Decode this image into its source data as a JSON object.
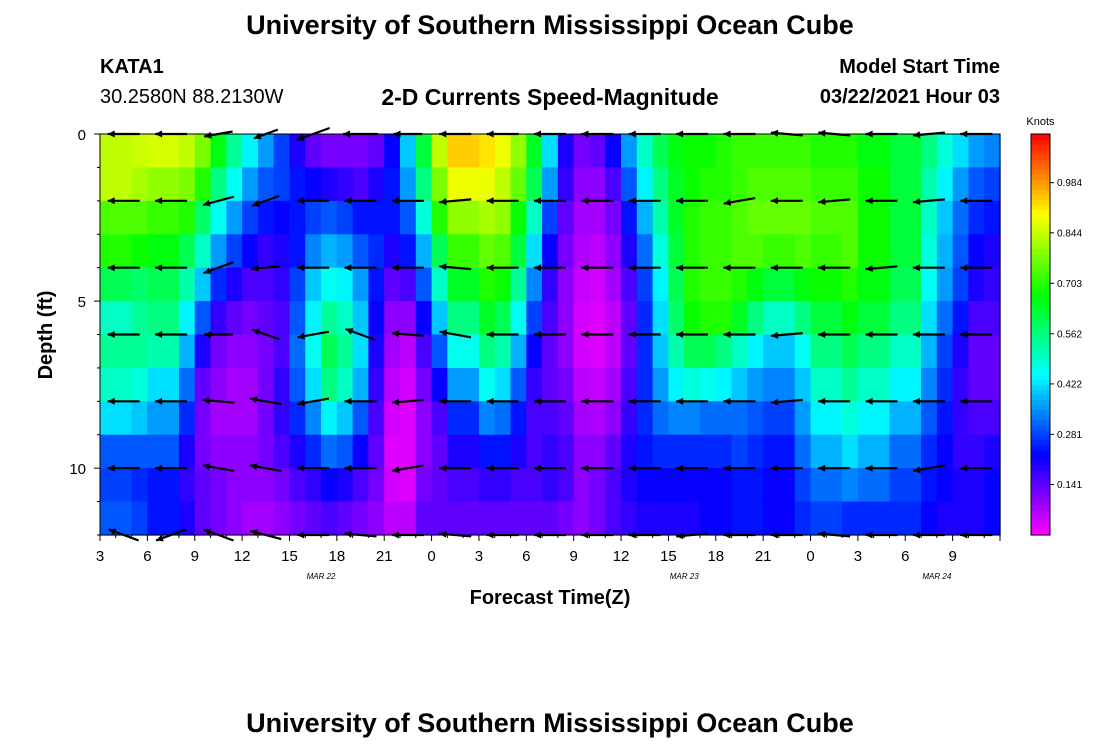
{
  "header": {
    "title": "University of Southern Mississippi Ocean Cube",
    "footer_title": "University of Southern Mississippi Ocean Cube",
    "station": "KATA1",
    "coords": "30.2580N 88.2130W",
    "subtitle": "2-D Currents Speed-Magnitude",
    "model_start_label": "Model Start Time",
    "model_start_value": "03/22/2021 Hour 03"
  },
  "colors": {
    "arrow": "#000000"
  },
  "chart_data": {
    "type": "heatmap",
    "title": "2-D Currents Speed-Magnitude",
    "xlabel": "Forecast Time(Z)",
    "ylabel": "Depth (ft)",
    "x_hours_from_start": [
      0,
      57
    ],
    "y_depth_ft": [
      0,
      12
    ],
    "x_tick_labels": [
      "3",
      "6",
      "9",
      "12",
      "15",
      "18",
      "21",
      "0",
      "3",
      "6",
      "9",
      "12",
      "15",
      "18",
      "21",
      "0",
      "3",
      "6",
      "9"
    ],
    "date_labels": [
      {
        "hour": 14,
        "text": "MAR 22"
      },
      {
        "hour": 37,
        "text": "MAR 23"
      },
      {
        "hour": 53,
        "text": "MAR 24"
      }
    ],
    "y_tick_labels": [
      "0",
      "5",
      "10"
    ],
    "y_tick_values": [
      0,
      5,
      10
    ],
    "colorbar": {
      "label": "Knots",
      "range": [
        0.0,
        1.12
      ],
      "tick_values": [
        0.141,
        0.281,
        0.422,
        0.562,
        0.703,
        0.844,
        0.984
      ],
      "tick_labels": [
        "0.141",
        "0.281",
        "0.422",
        "0.562",
        "0.703",
        "0.844",
        "0.984"
      ]
    },
    "speed_profiles": [
      {
        "hour": 0,
        "knots": [
          0.84,
          0.84,
          0.74,
          0.7,
          0.6,
          0.5,
          0.54,
          0.5,
          0.42,
          0.3,
          0.28,
          0.3
        ]
      },
      {
        "hour": 2,
        "knots": [
          0.85,
          0.82,
          0.74,
          0.68,
          0.58,
          0.54,
          0.54,
          0.48,
          0.4,
          0.3,
          0.26,
          0.28
        ]
      },
      {
        "hour": 3,
        "knots": [
          0.86,
          0.8,
          0.72,
          0.66,
          0.6,
          0.56,
          0.52,
          0.42,
          0.36,
          0.3,
          0.24,
          0.24
        ]
      },
      {
        "hour": 5,
        "knots": [
          0.84,
          0.78,
          0.7,
          0.6,
          0.52,
          0.44,
          0.38,
          0.32,
          0.26,
          0.2,
          0.18,
          0.2
        ]
      },
      {
        "hour": 6,
        "knots": [
          0.78,
          0.7,
          0.58,
          0.5,
          0.4,
          0.3,
          0.2,
          0.14,
          0.12,
          0.12,
          0.14,
          0.14
        ]
      },
      {
        "hour": 7,
        "knots": [
          0.66,
          0.56,
          0.46,
          0.36,
          0.26,
          0.18,
          0.12,
          0.1,
          0.08,
          0.1,
          0.12,
          0.12
        ]
      },
      {
        "hour": 8,
        "knots": [
          0.54,
          0.46,
          0.36,
          0.28,
          0.2,
          0.14,
          0.1,
          0.08,
          0.08,
          0.1,
          0.1,
          0.1
        ]
      },
      {
        "hour": 9,
        "knots": [
          0.44,
          0.36,
          0.28,
          0.22,
          0.16,
          0.12,
          0.1,
          0.08,
          0.08,
          0.1,
          0.1,
          0.08
        ]
      },
      {
        "hour": 10,
        "knots": [
          0.36,
          0.3,
          0.24,
          0.18,
          0.16,
          0.14,
          0.12,
          0.12,
          0.12,
          0.12,
          0.1,
          0.08
        ]
      },
      {
        "hour": 11,
        "knots": [
          0.28,
          0.28,
          0.22,
          0.2,
          0.18,
          0.16,
          0.16,
          0.18,
          0.18,
          0.16,
          0.12,
          0.1
        ]
      },
      {
        "hour": 12,
        "knots": [
          0.2,
          0.24,
          0.24,
          0.24,
          0.28,
          0.3,
          0.32,
          0.3,
          0.26,
          0.2,
          0.16,
          0.12
        ]
      },
      {
        "hour": 13,
        "knots": [
          0.14,
          0.22,
          0.28,
          0.34,
          0.4,
          0.44,
          0.46,
          0.42,
          0.34,
          0.26,
          0.18,
          0.14
        ]
      },
      {
        "hour": 14,
        "knots": [
          0.12,
          0.2,
          0.3,
          0.38,
          0.46,
          0.54,
          0.6,
          0.56,
          0.44,
          0.32,
          0.22,
          0.16
        ]
      },
      {
        "hour": 15,
        "knots": [
          0.12,
          0.18,
          0.28,
          0.36,
          0.44,
          0.5,
          0.54,
          0.5,
          0.4,
          0.3,
          0.2,
          0.14
        ]
      },
      {
        "hour": 16,
        "knots": [
          0.12,
          0.16,
          0.24,
          0.3,
          0.36,
          0.4,
          0.42,
          0.38,
          0.3,
          0.22,
          0.16,
          0.12
        ]
      },
      {
        "hour": 17,
        "knots": [
          0.14,
          0.2,
          0.24,
          0.26,
          0.24,
          0.22,
          0.2,
          0.18,
          0.16,
          0.14,
          0.12,
          0.1
        ]
      },
      {
        "hour": 18,
        "knots": [
          0.22,
          0.24,
          0.24,
          0.2,
          0.14,
          0.1,
          0.08,
          0.06,
          0.04,
          0.03,
          0.04,
          0.06
        ]
      },
      {
        "hour": 19,
        "knots": [
          0.4,
          0.36,
          0.3,
          0.24,
          0.16,
          0.1,
          0.06,
          0.04,
          0.03,
          0.03,
          0.03,
          0.06
        ]
      },
      {
        "hour": 20,
        "knots": [
          0.62,
          0.56,
          0.48,
          0.38,
          0.3,
          0.22,
          0.16,
          0.12,
          0.1,
          0.1,
          0.12,
          0.14
        ]
      },
      {
        "hour": 21,
        "knots": [
          0.84,
          0.78,
          0.7,
          0.6,
          0.5,
          0.4,
          0.3,
          0.22,
          0.16,
          0.14,
          0.14,
          0.14
        ]
      },
      {
        "hour": 22,
        "knots": [
          0.94,
          0.88,
          0.8,
          0.72,
          0.64,
          0.56,
          0.46,
          0.36,
          0.26,
          0.2,
          0.16,
          0.14
        ]
      },
      {
        "hour": 24,
        "knots": [
          0.92,
          0.88,
          0.82,
          0.76,
          0.7,
          0.64,
          0.56,
          0.46,
          0.34,
          0.24,
          0.18,
          0.14
        ]
      },
      {
        "hour": 25,
        "knots": [
          0.88,
          0.84,
          0.8,
          0.74,
          0.68,
          0.6,
          0.52,
          0.42,
          0.32,
          0.24,
          0.18,
          0.14
        ]
      },
      {
        "hour": 26,
        "knots": [
          0.8,
          0.76,
          0.68,
          0.62,
          0.54,
          0.46,
          0.38,
          0.3,
          0.24,
          0.2,
          0.16,
          0.14
        ]
      },
      {
        "hour": 27,
        "knots": [
          0.64,
          0.6,
          0.5,
          0.42,
          0.34,
          0.28,
          0.22,
          0.18,
          0.16,
          0.16,
          0.16,
          0.14
        ]
      },
      {
        "hour": 28,
        "knots": [
          0.42,
          0.36,
          0.28,
          0.22,
          0.18,
          0.16,
          0.14,
          0.14,
          0.16,
          0.18,
          0.18,
          0.14
        ]
      },
      {
        "hour": 29,
        "knots": [
          0.2,
          0.18,
          0.14,
          0.12,
          0.1,
          0.1,
          0.1,
          0.12,
          0.14,
          0.16,
          0.16,
          0.12
        ]
      },
      {
        "hour": 30,
        "knots": [
          0.12,
          0.1,
          0.08,
          0.07,
          0.05,
          0.04,
          0.04,
          0.06,
          0.08,
          0.1,
          0.1,
          0.1
        ]
      },
      {
        "hour": 31,
        "knots": [
          0.14,
          0.1,
          0.08,
          0.06,
          0.04,
          0.03,
          0.03,
          0.05,
          0.07,
          0.1,
          0.12,
          0.12
        ]
      },
      {
        "hour": 32,
        "knots": [
          0.22,
          0.16,
          0.12,
          0.1,
          0.08,
          0.06,
          0.06,
          0.08,
          0.1,
          0.14,
          0.16,
          0.16
        ]
      },
      {
        "hour": 33,
        "knots": [
          0.36,
          0.3,
          0.24,
          0.2,
          0.16,
          0.14,
          0.14,
          0.16,
          0.18,
          0.2,
          0.2,
          0.18
        ]
      },
      {
        "hour": 34,
        "knots": [
          0.5,
          0.44,
          0.38,
          0.32,
          0.28,
          0.26,
          0.26,
          0.26,
          0.26,
          0.24,
          0.22,
          0.2
        ]
      },
      {
        "hour": 35,
        "knots": [
          0.6,
          0.56,
          0.52,
          0.48,
          0.44,
          0.42,
          0.4,
          0.36,
          0.32,
          0.26,
          0.22,
          0.2
        ]
      },
      {
        "hour": 36,
        "knots": [
          0.66,
          0.64,
          0.64,
          0.62,
          0.6,
          0.58,
          0.52,
          0.44,
          0.34,
          0.26,
          0.22,
          0.2
        ]
      },
      {
        "hour": 37,
        "knots": [
          0.68,
          0.68,
          0.7,
          0.7,
          0.7,
          0.68,
          0.6,
          0.48,
          0.34,
          0.26,
          0.22,
          0.2
        ]
      },
      {
        "hour": 38,
        "knots": [
          0.68,
          0.7,
          0.72,
          0.72,
          0.72,
          0.7,
          0.6,
          0.46,
          0.32,
          0.26,
          0.22,
          0.22
        ]
      },
      {
        "hour": 39,
        "knots": [
          0.7,
          0.7,
          0.72,
          0.72,
          0.72,
          0.7,
          0.56,
          0.44,
          0.32,
          0.26,
          0.22,
          0.22
        ]
      },
      {
        "hour": 40,
        "knots": [
          0.72,
          0.72,
          0.74,
          0.74,
          0.7,
          0.64,
          0.5,
          0.4,
          0.32,
          0.28,
          0.24,
          0.24
        ]
      },
      {
        "hour": 41,
        "knots": [
          0.72,
          0.74,
          0.76,
          0.74,
          0.66,
          0.56,
          0.44,
          0.36,
          0.3,
          0.26,
          0.24,
          0.24
        ]
      },
      {
        "hour": 42,
        "knots": [
          0.72,
          0.74,
          0.76,
          0.72,
          0.62,
          0.5,
          0.4,
          0.34,
          0.28,
          0.24,
          0.22,
          0.22
        ]
      },
      {
        "hour": 44,
        "knots": [
          0.72,
          0.74,
          0.76,
          0.74,
          0.66,
          0.56,
          0.46,
          0.4,
          0.36,
          0.32,
          0.28,
          0.26
        ]
      },
      {
        "hour": 45,
        "knots": [
          0.7,
          0.72,
          0.74,
          0.72,
          0.68,
          0.62,
          0.56,
          0.5,
          0.44,
          0.38,
          0.32,
          0.28
        ]
      },
      {
        "hour": 47,
        "knots": [
          0.7,
          0.72,
          0.74,
          0.74,
          0.7,
          0.66,
          0.6,
          0.54,
          0.48,
          0.42,
          0.34,
          0.26
        ]
      },
      {
        "hour": 48,
        "knots": [
          0.66,
          0.68,
          0.68,
          0.68,
          0.66,
          0.62,
          0.56,
          0.5,
          0.44,
          0.38,
          0.32,
          0.26
        ]
      },
      {
        "hour": 50,
        "knots": [
          0.62,
          0.62,
          0.62,
          0.62,
          0.6,
          0.56,
          0.5,
          0.44,
          0.38,
          0.32,
          0.28,
          0.26
        ]
      },
      {
        "hour": 52,
        "knots": [
          0.56,
          0.52,
          0.5,
          0.48,
          0.46,
          0.42,
          0.38,
          0.34,
          0.3,
          0.26,
          0.24,
          0.22
        ]
      },
      {
        "hour": 53,
        "knots": [
          0.48,
          0.44,
          0.4,
          0.38,
          0.36,
          0.32,
          0.28,
          0.26,
          0.24,
          0.22,
          0.22,
          0.2
        ]
      },
      {
        "hour": 54,
        "knots": [
          0.42,
          0.36,
          0.32,
          0.3,
          0.28,
          0.24,
          0.2,
          0.18,
          0.18,
          0.18,
          0.2,
          0.2
        ]
      },
      {
        "hour": 55,
        "knots": [
          0.36,
          0.3,
          0.26,
          0.22,
          0.2,
          0.16,
          0.14,
          0.14,
          0.16,
          0.18,
          0.2,
          0.2
        ]
      },
      {
        "hour": 56,
        "knots": [
          0.34,
          0.28,
          0.24,
          0.2,
          0.18,
          0.16,
          0.14,
          0.14,
          0.16,
          0.2,
          0.22,
          0.22
        ]
      },
      {
        "hour": 57,
        "knots": [
          0.36,
          0.3,
          0.26,
          0.22,
          0.2,
          0.18,
          0.18,
          0.18,
          0.2,
          0.22,
          0.24,
          0.24
        ]
      }
    ],
    "vector_rows_depth_ft": [
      0,
      2,
      4,
      6,
      8,
      10,
      12
    ],
    "vector_columns_hour": [
      1.5,
      4.5,
      7.5,
      10.5,
      13.5,
      16.5,
      19.5,
      22.5,
      25.5,
      28.5,
      31.5,
      34.5,
      37.5,
      40.5,
      43.5,
      46.5,
      49.5,
      52.5,
      55.5
    ],
    "vector_directions_deg": [
      [
        180,
        180,
        190,
        200,
        200,
        180,
        180,
        180,
        180,
        180,
        180,
        180,
        180,
        180,
        175,
        175,
        180,
        185,
        180
      ],
      [
        180,
        180,
        195,
        200,
        180,
        180,
        180,
        185,
        180,
        180,
        180,
        180,
        180,
        190,
        180,
        185,
        180,
        185,
        180
      ],
      [
        180,
        180,
        200,
        185,
        180,
        180,
        180,
        175,
        180,
        180,
        180,
        180,
        180,
        180,
        180,
        180,
        185,
        180,
        180
      ],
      [
        180,
        180,
        180,
        160,
        190,
        160,
        175,
        170,
        180,
        180,
        180,
        180,
        180,
        180,
        185,
        180,
        180,
        180,
        180
      ],
      [
        180,
        180,
        175,
        170,
        190,
        180,
        185,
        180,
        180,
        180,
        180,
        180,
        180,
        180,
        185,
        180,
        180,
        180,
        180
      ],
      [
        180,
        180,
        170,
        170,
        180,
        180,
        190,
        180,
        180,
        180,
        180,
        180,
        180,
        180,
        180,
        180,
        180,
        190,
        180
      ],
      [
        160,
        200,
        160,
        165,
        180,
        175,
        180,
        175,
        180,
        180,
        180,
        180,
        185,
        180,
        180,
        175,
        180,
        180,
        180
      ]
    ],
    "vector_lengths_rel": [
      [
        1,
        1,
        0.9,
        0.8,
        1.1,
        1.1,
        0.9,
        1,
        1,
        1,
        1,
        1,
        1,
        1,
        1,
        1,
        1,
        1,
        1
      ],
      [
        1,
        1,
        1,
        0.9,
        1,
        1,
        1,
        1,
        1,
        1,
        1,
        1,
        1,
        1,
        1,
        1,
        1,
        1,
        1
      ],
      [
        1,
        1,
        1,
        0.9,
        1,
        1,
        1,
        1,
        1,
        1,
        1,
        1,
        1,
        1,
        1,
        1,
        1,
        1,
        1
      ],
      [
        1,
        1,
        0.9,
        0.9,
        1,
        1,
        1,
        1,
        1,
        1,
        1,
        1,
        1,
        1,
        1,
        1,
        1,
        1,
        1
      ],
      [
        1,
        1,
        1,
        1,
        1,
        1,
        1,
        1,
        1,
        1,
        1,
        1,
        1,
        1,
        1,
        1,
        1,
        1,
        1
      ],
      [
        1,
        1,
        1,
        1,
        1,
        1,
        1,
        1,
        1,
        1,
        1,
        1,
        1,
        1,
        1,
        1,
        1,
        1,
        1
      ],
      [
        1,
        1,
        1,
        1,
        1,
        1,
        1,
        1,
        1,
        1,
        1,
        1,
        1,
        1,
        1,
        1,
        1,
        1,
        1
      ]
    ]
  }
}
